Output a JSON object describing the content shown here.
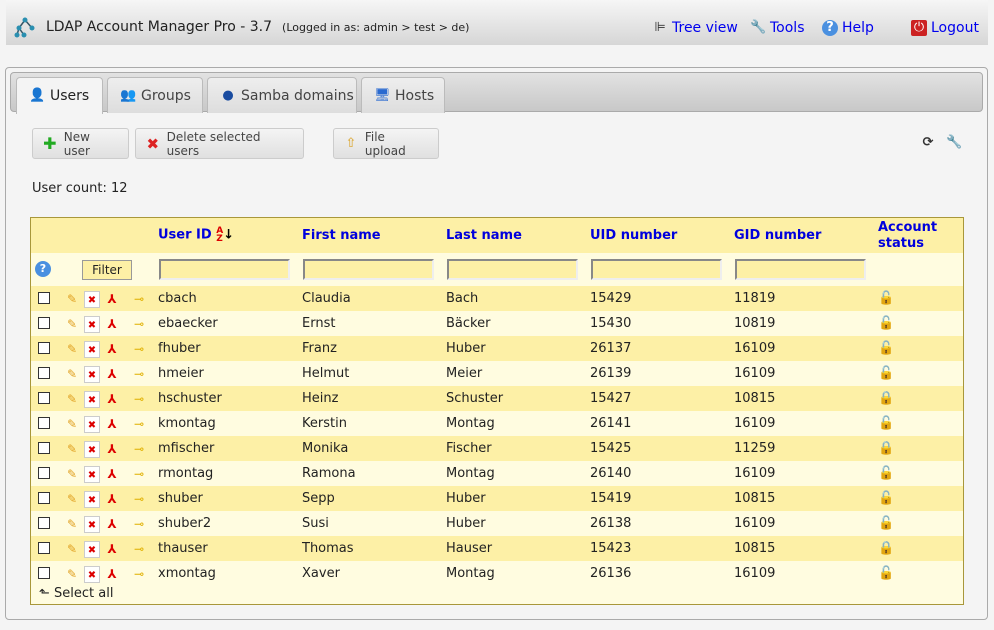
{
  "header": {
    "title": "LDAP Account Manager Pro - 3.7",
    "login": "(Logged in as: admin > test > de)",
    "links": [
      {
        "label": "Tree view",
        "icon": "tree-view-icon"
      },
      {
        "label": "Tools",
        "icon": "wrench-icon"
      },
      {
        "label": "Help",
        "icon": "help-icon"
      },
      {
        "label": "Logout",
        "icon": "logout-icon"
      }
    ]
  },
  "tabs": [
    {
      "label": "Users",
      "icon": "user-icon",
      "active": true
    },
    {
      "label": "Groups",
      "icon": "group-icon"
    },
    {
      "label": "Samba domains",
      "icon": "globe-icon"
    },
    {
      "label": "Hosts",
      "icon": "computer-icon"
    }
  ],
  "toolbar": {
    "new_user": "New user",
    "delete_selected": "Delete selected users",
    "file_upload": "File upload"
  },
  "user_count_label": "User count:",
  "user_count": "12",
  "table": {
    "columns": [
      "User ID",
      "First name",
      "Last name",
      "UID number",
      "GID number",
      "Account status"
    ],
    "sort_column": "User ID",
    "sort_order": "ascending",
    "filter_label": "Filter",
    "rows": [
      {
        "uid": "cbach",
        "first": "Claudia",
        "last": "Bach",
        "uidn": "15429",
        "gidn": "11819",
        "locked": false
      },
      {
        "uid": "ebaecker",
        "first": "Ernst",
        "last": "Bäcker",
        "uidn": "15430",
        "gidn": "10819",
        "locked": false
      },
      {
        "uid": "fhuber",
        "first": "Franz",
        "last": "Huber",
        "uidn": "26137",
        "gidn": "16109",
        "locked": false
      },
      {
        "uid": "hmeier",
        "first": "Helmut",
        "last": "Meier",
        "uidn": "26139",
        "gidn": "16109",
        "locked": false
      },
      {
        "uid": "hschuster",
        "first": "Heinz",
        "last": "Schuster",
        "uidn": "15427",
        "gidn": "10815",
        "locked": true
      },
      {
        "uid": "kmontag",
        "first": "Kerstin",
        "last": "Montag",
        "uidn": "26141",
        "gidn": "16109",
        "locked": false
      },
      {
        "uid": "mfischer",
        "first": "Monika",
        "last": "Fischer",
        "uidn": "15425",
        "gidn": "11259",
        "locked": true
      },
      {
        "uid": "rmontag",
        "first": "Ramona",
        "last": "Montag",
        "uidn": "26140",
        "gidn": "16109",
        "locked": false
      },
      {
        "uid": "shuber",
        "first": "Sepp",
        "last": "Huber",
        "uidn": "15419",
        "gidn": "10815",
        "locked": false
      },
      {
        "uid": "shuber2",
        "first": "Susi",
        "last": "Huber",
        "uidn": "26138",
        "gidn": "16109",
        "locked": false
      },
      {
        "uid": "thauser",
        "first": "Thomas",
        "last": "Hauser",
        "uidn": "15423",
        "gidn": "10815",
        "locked": true
      },
      {
        "uid": "xmontag",
        "first": "Xaver",
        "last": "Montag",
        "uidn": "26136",
        "gidn": "16109",
        "locked": false
      }
    ],
    "select_all": "Select all"
  },
  "colors": {
    "link": "#0000ee",
    "row_odd": "#fdf0a6",
    "row_even": "#fffce0",
    "table_border": "#a8973a"
  }
}
